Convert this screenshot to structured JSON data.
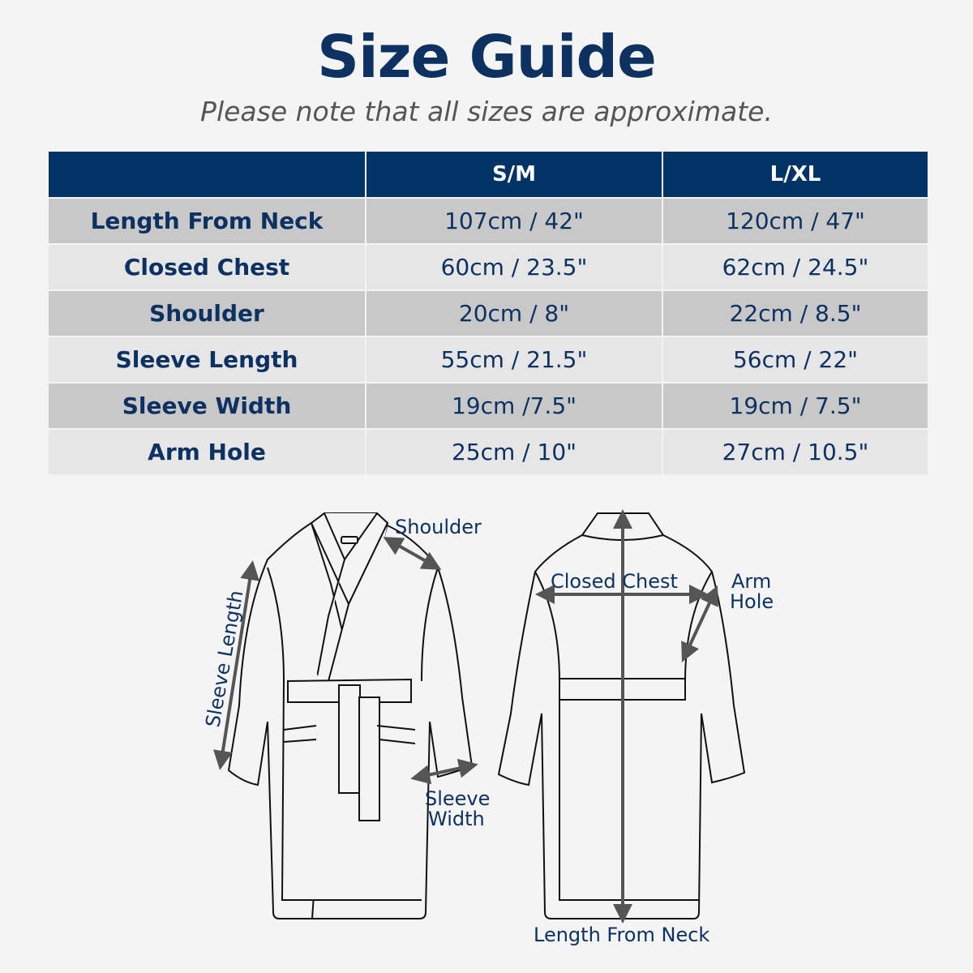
{
  "title": "Size Guide",
  "subtitle": "Please note that all sizes are approximate.",
  "table": {
    "headers": [
      "",
      "S/M",
      "L/XL"
    ],
    "rows": [
      {
        "label": "Length From Neck",
        "sm": "107cm / 42\"",
        "lxl": "120cm / 47\""
      },
      {
        "label": "Closed Chest",
        "sm": "60cm / 23.5\"",
        "lxl": "62cm / 24.5\""
      },
      {
        "label": "Shoulder",
        "sm": "20cm / 8\"",
        "lxl": "22cm / 8.5\""
      },
      {
        "label": "Sleeve Length",
        "sm": "55cm / 21.5\"",
        "lxl": "56cm / 22\""
      },
      {
        "label": "Sleeve Width",
        "sm": "19cm /7.5\"",
        "lxl": "19cm / 7.5\""
      },
      {
        "label": "Arm Hole",
        "sm": "25cm / 10\"",
        "lxl": "27cm / 10.5\""
      }
    ]
  },
  "diagram": {
    "shoulder": "Shoulder",
    "sleeve_length": "Sleeve Length",
    "sleeve_width_1": "Sleeve",
    "sleeve_width_2": "Width",
    "closed_chest": "Closed Chest",
    "arm_hole_1": "Arm",
    "arm_hole_2": "Hole",
    "length_from_neck": "Length From Neck"
  },
  "colors": {
    "header_bg": "#023366",
    "text": "#0d3262",
    "row_dark": "#c8c8c8",
    "row_light": "#e6e6e6",
    "arrow": "#555555"
  }
}
